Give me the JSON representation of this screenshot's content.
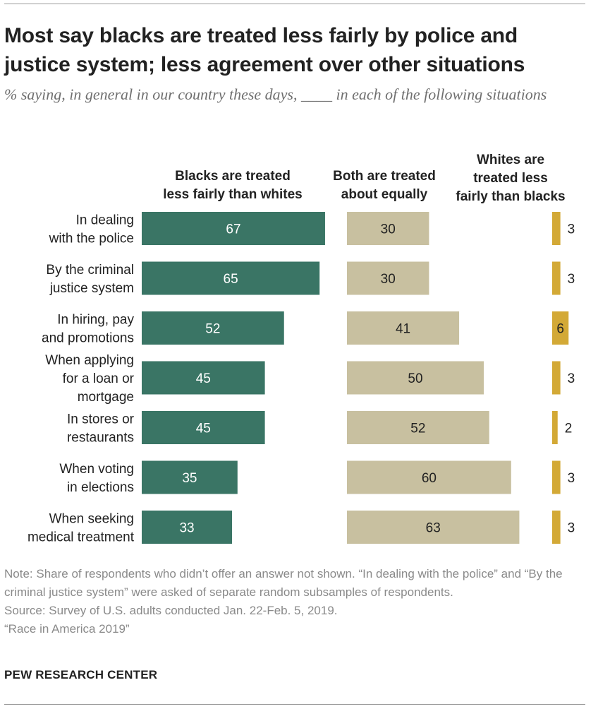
{
  "title": "Most say blacks are treated less fairly by police and justice system; less agreement over other situations",
  "subtitle": "% saying, in general in our country these days, ____ in each of the following situations",
  "colors": {
    "green": "#3a7565",
    "tan": "#c8c0a0",
    "gold": "#d3a936"
  },
  "chart_data": {
    "type": "bar",
    "categories": [
      "In dealing with the police",
      "By the criminal justice system",
      "In hiring, pay and promotions",
      "When applying for a loan or mortgage",
      "In stores or restaurants",
      "When voting in elections",
      "When seeking medical treatment"
    ],
    "category_lines": [
      [
        "In dealing",
        "with the police"
      ],
      [
        "By the criminal",
        "justice system"
      ],
      [
        "In hiring, pay",
        "and promotions"
      ],
      [
        "When applying",
        "for a loan or",
        "mortgage"
      ],
      [
        "In stores or",
        "restaurants"
      ],
      [
        "When voting",
        "in elections"
      ],
      [
        "When seeking",
        "medical treatment"
      ]
    ],
    "series": [
      {
        "name": "Blacks are treated less fairly than whites",
        "name_lines": [
          "Blacks are treated",
          "less fairly than whites"
        ],
        "values": [
          67,
          65,
          52,
          45,
          45,
          35,
          33
        ]
      },
      {
        "name": "Both are treated about equally",
        "name_lines": [
          "Both are treated",
          "about equally"
        ],
        "values": [
          30,
          30,
          41,
          50,
          52,
          60,
          63
        ]
      },
      {
        "name": "Whites are treated less fairly than blacks",
        "name_lines": [
          "Whites are",
          "treated less",
          "fairly than blacks"
        ],
        "values": [
          3,
          3,
          6,
          3,
          2,
          3,
          3
        ]
      }
    ],
    "xlim": [
      0,
      100
    ],
    "grid": false,
    "legend": "column headers above bars"
  },
  "notes": {
    "note": "Note: Share of respondents who didn’t offer an answer not shown. “In dealing with the police” and “By the criminal justice system” were asked of separate random subsamples of respondents.",
    "source": "Source: Survey of U.S. adults conducted Jan. 22-Feb. 5, 2019.",
    "report": "“Race in America 2019”"
  },
  "brand": "PEW RESEARCH CENTER"
}
